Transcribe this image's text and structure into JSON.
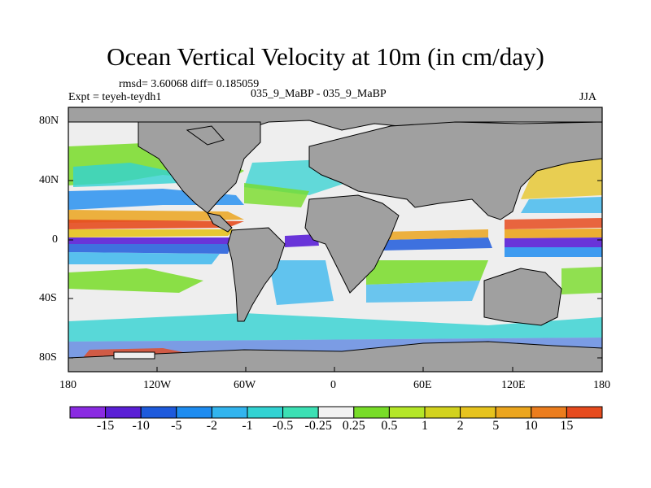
{
  "title": "Ocean Vertical Velocity at 10m (in cm/day)",
  "stats_line": "rmsd= 3.60068 diff= 0.185059",
  "experiment_line": "Expt = teyeh-teydh1",
  "case_line": "035_9_MaBP - 035_9_MaBP",
  "season": "JJA",
  "map": {
    "lon_range": [
      -180,
      180
    ],
    "lat_range": [
      -90,
      90
    ],
    "ocean_fill_default": "#eeeeee",
    "land_color": "#a0a0a0",
    "lat_ticks": [
      "80N",
      "40N",
      "0",
      "40S",
      "80S"
    ],
    "lon_ticks": [
      "180",
      "120W",
      "60W",
      "0",
      "60E",
      "120E",
      "180"
    ]
  },
  "colorbar": {
    "colors": [
      "#8a2be2",
      "#5a1fd6",
      "#1e5adc",
      "#1e8cf0",
      "#32b4ee",
      "#32d2d2",
      "#3ce0b4",
      "#f2f2f2",
      "#78dc28",
      "#b4e628",
      "#d2d21e",
      "#e6c31e",
      "#eba51e",
      "#eb7d1e",
      "#e64b1e"
    ],
    "labels": [
      "-15",
      "-10",
      "-5",
      "-2",
      "-1",
      "-0.5",
      "-0.25",
      "0.25",
      "0.5",
      "1",
      "2",
      "5",
      "10",
      "15"
    ]
  }
}
